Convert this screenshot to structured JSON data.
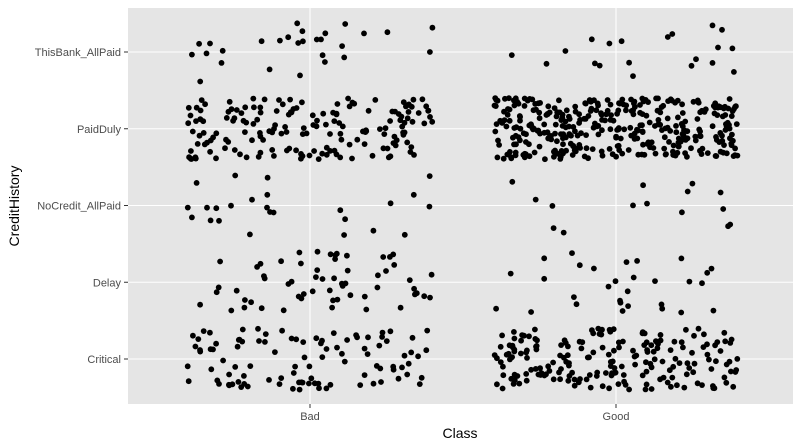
{
  "chart_data": {
    "type": "scatter",
    "title": "",
    "xlabel": "Class",
    "ylabel": "CreditHistory",
    "x_categories": [
      "Bad",
      "Good"
    ],
    "y_categories": [
      "Critical",
      "Delay",
      "NoCredit_AllPaid",
      "PaidDuly",
      "ThisBank_AllPaid"
    ],
    "jitter": {
      "x": 0.4,
      "y": 0.4
    },
    "legend": "none",
    "grid": true,
    "colors": {
      "panel": "#e5e5e5",
      "grid": "#ffffff",
      "point": "#000000"
    },
    "points_per_group": {
      "Bad": {
        "Critical": 100,
        "Delay": 60,
        "NoCredit_AllPaid": 25,
        "PaidDuly": 170,
        "ThisBank_AllPaid": 28
      },
      "Good": {
        "Critical": 200,
        "Delay": 30,
        "NoCredit_AllPaid": 15,
        "PaidDuly": 360,
        "ThisBank_AllPaid": 20
      }
    }
  }
}
